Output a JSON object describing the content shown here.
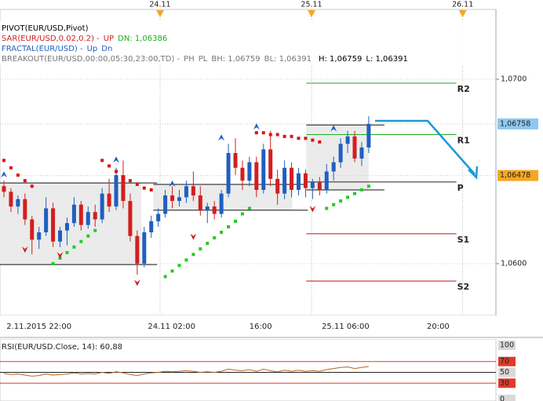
{
  "chart_data": {
    "type": "candlestick",
    "legend": [
      [
        {
          "text": "PIVOT(EUR/USD,Pivot)",
          "color": "#000000"
        }
      ],
      [
        {
          "text": "SAR(EUR/USD,0.02,0.2) -",
          "color": "#d21f1f"
        },
        {
          "text": "UP",
          "color": "#d21f1f"
        },
        {
          "text": "DN: 1,06386",
          "color": "#22aa22"
        }
      ],
      [
        {
          "text": "FRACTAL(EUR/USD) -",
          "color": "#1f5fbf"
        },
        {
          "text": "Up",
          "color": "#1f5fbf"
        },
        {
          "text": "Dn",
          "color": "#1f5fbf"
        }
      ],
      [
        {
          "text": "BREAKOUT(EUR/USD,00:00,05:30,23:00,TD) -",
          "color": "#777777"
        },
        {
          "text": "PH",
          "color": "#777777"
        },
        {
          "text": "PL",
          "color": "#777777"
        },
        {
          "text": "BH: 1,06759",
          "color": "#777777"
        },
        {
          "text": "BL: 1,06391",
          "color": "#777777"
        },
        {
          "text": "H: 1,06759",
          "color": "#000000"
        },
        {
          "text": "L: 1,06391",
          "color": "#000000"
        }
      ]
    ],
    "up_color": "#1f5fbf",
    "down_color": "#d21f1f",
    "ohlc": [
      [
        1.0642,
        1.0645,
        1.0636,
        1.0639
      ],
      [
        1.0639,
        1.0641,
        1.0628,
        1.0631
      ],
      [
        1.0631,
        1.0637,
        1.0627,
        1.0635
      ],
      [
        1.0635,
        1.0638,
        1.0621,
        1.0624
      ],
      [
        1.0624,
        1.0626,
        1.0605,
        1.0613
      ],
      [
        1.0613,
        1.062,
        1.0608,
        1.0617
      ],
      [
        1.0617,
        1.0636,
        1.0615,
        1.063
      ],
      [
        1.063,
        1.0633,
        1.0609,
        1.0612
      ],
      [
        1.0612,
        1.062,
        1.0609,
        1.0618
      ],
      [
        1.0618,
        1.0625,
        1.061,
        1.0622
      ],
      [
        1.0622,
        1.0636,
        1.062,
        1.0632
      ],
      [
        1.0632,
        1.0634,
        1.0618,
        1.0621
      ],
      [
        1.0621,
        1.0631,
        1.0619,
        1.0628
      ],
      [
        1.0628,
        1.0632,
        1.062,
        1.0624
      ],
      [
        1.0624,
        1.0641,
        1.0622,
        1.0638
      ],
      [
        1.0638,
        1.0646,
        1.0628,
        1.0631
      ],
      [
        1.0631,
        1.0652,
        1.0629,
        1.0648
      ],
      [
        1.0648,
        1.0656,
        1.063,
        1.0634
      ],
      [
        1.0634,
        1.0638,
        1.0612,
        1.0615
      ],
      [
        1.0615,
        1.0618,
        1.0594,
        1.06
      ],
      [
        1.06,
        1.062,
        1.0598,
        1.0617
      ],
      [
        1.0617,
        1.0626,
        1.0614,
        1.0623
      ],
      [
        1.0623,
        1.063,
        1.062,
        1.0627
      ],
      [
        1.0627,
        1.064,
        1.0625,
        1.0637
      ],
      [
        1.0637,
        1.0642,
        1.063,
        1.0634
      ],
      [
        1.0634,
        1.064,
        1.0631,
        1.0636
      ],
      [
        1.0636,
        1.0645,
        1.0633,
        1.0642
      ],
      [
        1.0642,
        1.065,
        1.0634,
        1.0637
      ],
      [
        1.0637,
        1.0642,
        1.0626,
        1.0629
      ],
      [
        1.0629,
        1.0633,
        1.0622,
        1.0631
      ],
      [
        1.0631,
        1.0634,
        1.0624,
        1.0627
      ],
      [
        1.0627,
        1.064,
        1.0625,
        1.0638
      ],
      [
        1.0638,
        1.0665,
        1.0636,
        1.066
      ],
      [
        1.066,
        1.0668,
        1.0648,
        1.0652
      ],
      [
        1.0652,
        1.0656,
        1.064,
        1.0645
      ],
      [
        1.0645,
        1.0658,
        1.0642,
        1.0655
      ],
      [
        1.0655,
        1.0658,
        1.0636,
        1.064
      ],
      [
        1.064,
        1.0665,
        1.0638,
        1.0662
      ],
      [
        1.0662,
        1.0672,
        1.0642,
        1.0646
      ],
      [
        1.0646,
        1.0651,
        1.0632,
        1.0638
      ],
      [
        1.0638,
        1.0656,
        1.0635,
        1.0652
      ],
      [
        1.0652,
        1.0655,
        1.0636,
        1.064
      ],
      [
        1.064,
        1.0652,
        1.0637,
        1.0649
      ],
      [
        1.0649,
        1.0651,
        1.0636,
        1.0641
      ],
      [
        1.0641,
        1.0646,
        1.0635,
        1.0644
      ],
      [
        1.0644,
        1.0647,
        1.0637,
        1.064
      ],
      [
        1.064,
        1.0654,
        1.0638,
        1.065
      ],
      [
        1.065,
        1.0658,
        1.0645,
        1.0655
      ],
      [
        1.0655,
        1.0668,
        1.0652,
        1.0665
      ],
      [
        1.0665,
        1.0672,
        1.066,
        1.0669
      ],
      [
        1.0669,
        1.0672,
        1.0655,
        1.0657
      ],
      [
        1.0657,
        1.0666,
        1.0653,
        1.0663
      ],
      [
        1.0663,
        1.068,
        1.066,
        1.06758
      ]
    ],
    "sar": [
      1.0656,
      1.0652,
      1.0648,
      1.0645,
      1.0642,
      null,
      null,
      1.06,
      1.0603,
      1.0606,
      1.0609,
      1.0612,
      1.0615,
      1.0618,
      1.0656,
      1.0653,
      1.065,
      1.0647,
      1.0645,
      1.0643,
      1.0641,
      1.064,
      null,
      1.0593,
      1.0596,
      1.0599,
      1.0602,
      1.0605,
      1.0608,
      1.0611,
      1.0614,
      1.0617,
      1.062,
      1.0623,
      1.0627,
      1.063,
      1.0671,
      1.0671,
      1.067,
      1.067,
      1.0669,
      1.0669,
      1.0668,
      1.0668,
      1.0667,
      1.0666,
      1.063,
      1.0632,
      1.0634,
      1.0636,
      1.0638,
      1.064,
      1.0642
    ],
    "sar_colors": {
      "above": "#e01010",
      "below": "#22cc22"
    },
    "fractal_up": {
      "index": [
        0,
        16,
        24,
        31,
        36,
        47
      ],
      "values": [
        1.0648,
        1.0656,
        1.0643,
        1.0668,
        1.0674,
        1.0673
      ],
      "color": "#1f5fbf"
    },
    "fractal_down": {
      "index": [
        3,
        8,
        19,
        27,
        44
      ],
      "values": [
        1.0608,
        1.0605,
        1.059,
        1.0615,
        1.063
      ],
      "color": "#d21f1f"
    },
    "boxes": [
      {
        "start": -0.6,
        "end": 19.6,
        "high": 1.06438,
        "low": 1.05995
      },
      {
        "start": 21.3,
        "end": 41.1,
        "high": 1.0643,
        "low": 1.0629
      },
      {
        "start": 43.1,
        "end": 52.0,
        "high": 1.06752,
        "low": 1.064
      }
    ],
    "pivot_range": [
      43.1,
      64.5
    ],
    "pivots": [
      {
        "label": "R2",
        "value": 1.06979,
        "color": "#22aa22"
      },
      {
        "label": "R1",
        "value": 1.067,
        "color": "#22aa22"
      },
      {
        "label": "P",
        "value": 1.06443,
        "color": "#222222"
      },
      {
        "label": "S1",
        "value": 1.06162,
        "color": "#c01010"
      },
      {
        "label": "S2",
        "value": 1.05906,
        "color": "#c01010"
      }
    ],
    "ylim": [
      1.05719,
      1.0743
    ],
    "yticks": [
      {
        "value": 1.06,
        "label": "1,0600"
      },
      {
        "value": 1.07,
        "label": "1,0700"
      }
    ],
    "price_markers": [
      {
        "value": 1.06758,
        "label": "1,06758",
        "color": "#8ec8f0"
      },
      {
        "value": 1.06478,
        "label": "1,06478",
        "color": "#f5a623"
      }
    ],
    "x_labels": [
      {
        "at": 5,
        "label": "2.11.2015 22:00"
      },
      {
        "at": 23.9,
        "label": "24.11 02:00"
      },
      {
        "at": 36.6,
        "label": "16:00"
      },
      {
        "at": 48.7,
        "label": "25.11 06:00"
      },
      {
        "at": 61.9,
        "label": "20:00"
      }
    ],
    "day_markers": [
      {
        "at": 22.26,
        "label": "24.11"
      },
      {
        "at": 43.85,
        "label": "25.11"
      },
      {
        "at": 65.4,
        "label": "26.11"
      }
    ],
    "rsi": {
      "title": "RSI(EUR/USD.Close, 14): 60,88",
      "color": "#b5651d",
      "values": [
        48,
        46,
        47,
        45,
        43,
        44,
        47,
        45,
        46,
        47,
        49,
        47,
        48,
        47,
        50,
        48,
        51,
        49,
        46,
        44,
        47,
        49,
        50,
        52,
        51,
        52,
        53,
        52,
        50,
        51,
        50,
        52,
        56,
        54,
        53,
        55,
        52,
        56,
        53,
        51,
        54,
        52,
        54,
        52,
        53,
        52,
        55,
        57,
        59,
        60,
        57,
        59,
        60.88
      ],
      "ylim": [
        0,
        100
      ],
      "yticks": [
        0,
        30,
        50,
        70,
        100
      ],
      "levels": [
        {
          "value": 70,
          "color": "#d04030"
        },
        {
          "value": 50,
          "color": "#222222"
        },
        {
          "value": 30,
          "color": "#d04030"
        }
      ]
    }
  }
}
